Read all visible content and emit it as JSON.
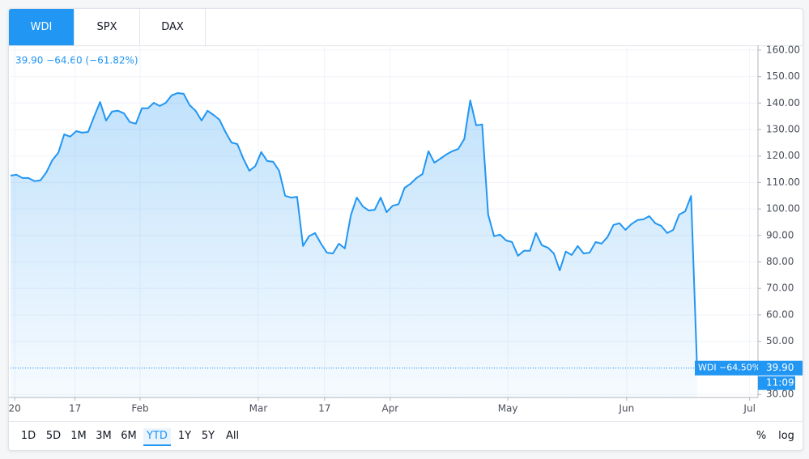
{
  "tabs": [
    "WDI",
    "SPX",
    "DAX"
  ],
  "active_tab": 0,
  "chart_data": {
    "type": "area",
    "legend_text": "39.90 −64.60 (−61.82%)",
    "series": [
      {
        "name": "WDI",
        "color": "#2196f3",
        "values": [
          112.6,
          112.9,
          111.7,
          111.7,
          110.5,
          110.8,
          113.8,
          118.4,
          121.2,
          128.2,
          127.3,
          129.4,
          128.8,
          129.1,
          134.9,
          140.4,
          133.4,
          136.8,
          137.1,
          136.1,
          132.8,
          132.2,
          138.0,
          138.0,
          140.1,
          138.9,
          140.1,
          142.9,
          143.8,
          143.5,
          139.2,
          137.1,
          133.4,
          137.1,
          135.5,
          133.7,
          129.1,
          125.1,
          124.5,
          119.0,
          114.4,
          116.2,
          121.5,
          118.1,
          117.8,
          114.4,
          105.0,
          104.3,
          104.6,
          86.0,
          89.7,
          90.9,
          86.9,
          83.5,
          83.2,
          86.9,
          85.1,
          97.6,
          104.3,
          101.0,
          99.4,
          99.7,
          104.3,
          98.8,
          101.2,
          101.8,
          108.0,
          109.5,
          111.7,
          113.2,
          121.8,
          117.5,
          119.0,
          120.6,
          121.8,
          122.7,
          126.4,
          141.0,
          131.6,
          131.9,
          97.9,
          89.7,
          90.3,
          88.1,
          87.5,
          82.3,
          84.2,
          84.2,
          90.9,
          86.3,
          85.4,
          83.2,
          76.8,
          83.9,
          82.6,
          86.0,
          83.2,
          83.5,
          87.5,
          86.9,
          89.4,
          94.0,
          94.6,
          92.1,
          94.3,
          95.8,
          96.1,
          97.3,
          94.6,
          93.6,
          90.9,
          92.1,
          97.9,
          99.1,
          104.9,
          39.9
        ]
      }
    ],
    "last_value_label": "39.90",
    "change_label": "−64.50%",
    "countdown": "11:09",
    "xlim": [
      0,
      125.2
    ],
    "xticks": [
      {
        "value": 0.7,
        "label": "20"
      },
      {
        "value": 10.8,
        "label": "17"
      },
      {
        "value": 21.7,
        "label": "Feb"
      },
      {
        "value": 41.5,
        "label": "Mar"
      },
      {
        "value": 52.6,
        "label": "17"
      },
      {
        "value": 63.6,
        "label": "Apr"
      },
      {
        "value": 83.3,
        "label": "May"
      },
      {
        "value": 103.2,
        "label": "Jun"
      },
      {
        "value": 123.8,
        "label": "Jul"
      }
    ],
    "ylim": [
      28.8,
      161.8
    ],
    "yticks": [
      {
        "value": 30,
        "label": "30.00"
      },
      {
        "value": 40,
        "label": "40.00"
      },
      {
        "value": 50,
        "label": "50.00"
      },
      {
        "value": 60,
        "label": "60.00"
      },
      {
        "value": 70,
        "label": "70.00"
      },
      {
        "value": 80,
        "label": "80.00"
      },
      {
        "value": 90,
        "label": "90.00"
      },
      {
        "value": 100,
        "label": "100.00"
      },
      {
        "value": 110,
        "label": "110.00"
      },
      {
        "value": 120,
        "label": "120.00"
      },
      {
        "value": 130,
        "label": "130.00"
      },
      {
        "value": 140,
        "label": "140.00"
      },
      {
        "value": 150,
        "label": "150.00"
      },
      {
        "value": 160,
        "label": "160.00"
      }
    ],
    "grid": true
  },
  "range_buttons": [
    "1D",
    "5D",
    "1M",
    "3M",
    "6M",
    "YTD",
    "1Y",
    "5Y",
    "All"
  ],
  "active_range": 5,
  "scale_buttons": [
    "%",
    "log"
  ]
}
